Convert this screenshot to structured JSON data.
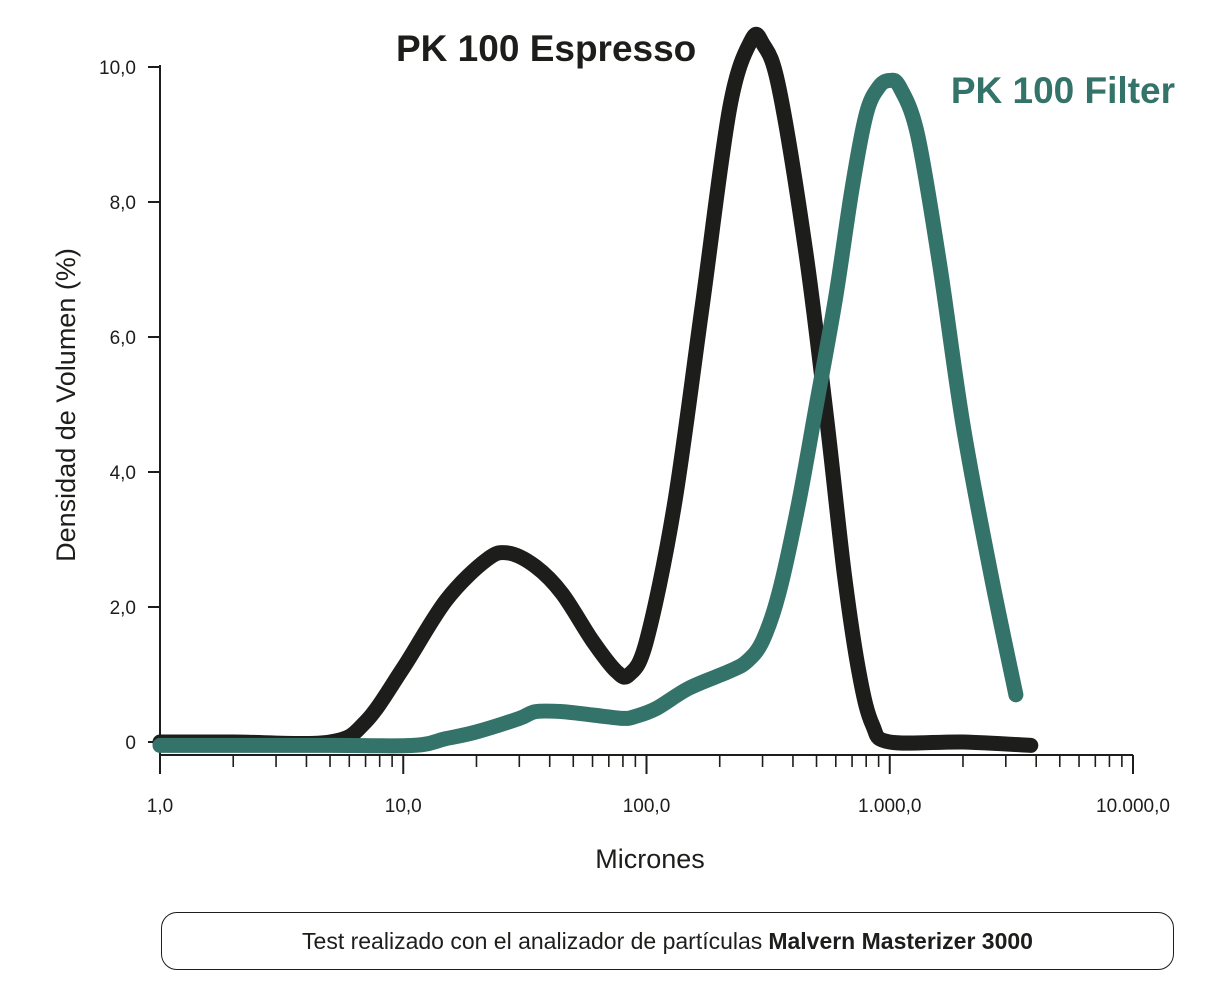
{
  "chart_data": {
    "type": "line",
    "xscale": "log",
    "xlim": [
      1,
      10000
    ],
    "ylim": [
      0,
      10
    ],
    "xlabel": "Micrones",
    "ylabel": "Densidad de Volumen (%)",
    "x_tick_values": [
      1,
      10,
      100,
      1000,
      10000
    ],
    "x_tick_labels": [
      "1,0",
      "10,0",
      "100,0",
      "1.000,0",
      "10.000,0"
    ],
    "y_tick_values": [
      0,
      2,
      4,
      6,
      8,
      10
    ],
    "y_tick_labels": [
      "0",
      "2,0",
      "4,0",
      "6,0",
      "8,0",
      "10,0"
    ],
    "series": [
      {
        "name": "PK 100 Espresso",
        "color": "#1d1d1b",
        "x": [
          1,
          2,
          5,
          7,
          10,
          15,
          22,
          27,
          35,
          45,
          60,
          75,
          85,
          100,
          130,
          170,
          220,
          270,
          300,
          350,
          450,
          550,
          650,
          750,
          850,
          1000,
          2000,
          3800
        ],
        "y": [
          0.0,
          0.0,
          0.0,
          0.3,
          1.1,
          2.1,
          2.7,
          2.8,
          2.6,
          2.2,
          1.5,
          1.05,
          1.0,
          1.5,
          3.5,
          6.5,
          9.4,
          10.4,
          10.35,
          9.7,
          7.3,
          4.8,
          2.5,
          1.0,
          0.25,
          0.0,
          0.0,
          -0.05
        ]
      },
      {
        "name": "PK 100 Filter",
        "color": "#34736a",
        "x": [
          1,
          5,
          11,
          15,
          20,
          30,
          35,
          45,
          60,
          80,
          90,
          110,
          150,
          220,
          260,
          300,
          350,
          420,
          500,
          600,
          700,
          800,
          900,
          1000,
          1100,
          1300,
          1600,
          2000,
          2600,
          3300
        ],
        "y": [
          -0.05,
          -0.05,
          -0.05,
          0.05,
          0.15,
          0.35,
          0.45,
          0.45,
          0.4,
          0.35,
          0.38,
          0.5,
          0.8,
          1.05,
          1.2,
          1.5,
          2.2,
          3.5,
          5.0,
          6.6,
          8.2,
          9.3,
          9.7,
          9.8,
          9.7,
          9.0,
          7.1,
          4.7,
          2.5,
          0.7
        ]
      }
    ],
    "footnote_text": "Test realizado con el analizador de partículas",
    "footnote_bold": "Malvern Masterizer 3000"
  }
}
